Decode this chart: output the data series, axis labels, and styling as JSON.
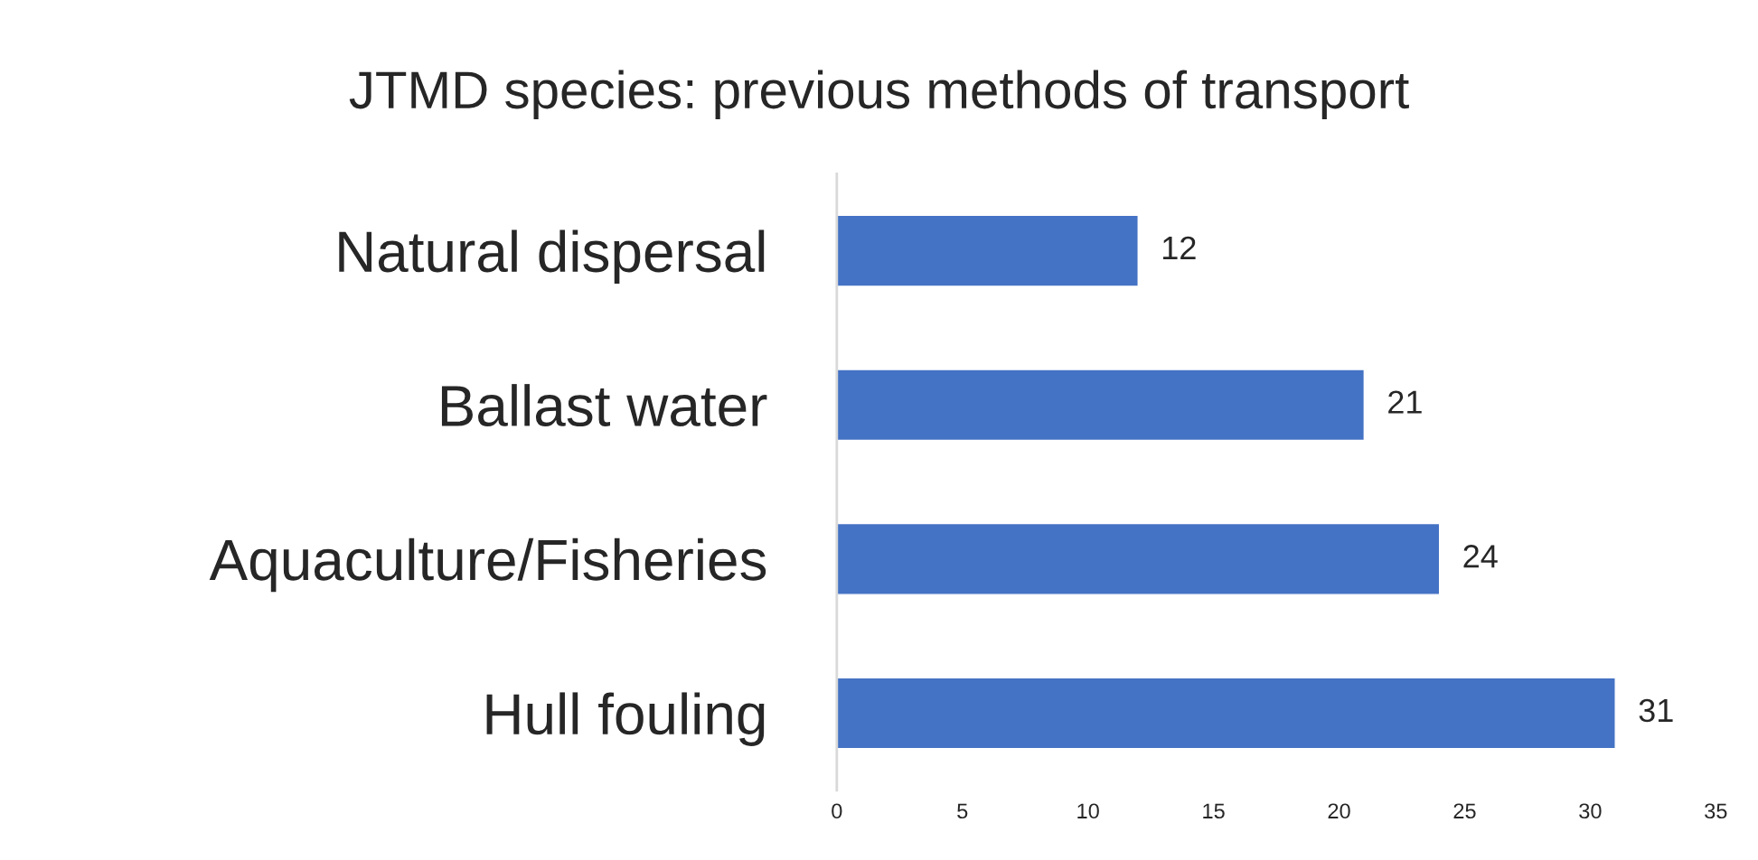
{
  "chart_data": {
    "type": "bar",
    "orientation": "horizontal",
    "title": "JTMD species: previous methods of transport",
    "categories": [
      "Natural dispersal",
      "Ballast water",
      "Aquaculture/Fisheries",
      "Hull fouling"
    ],
    "values": [
      12,
      21,
      24,
      31
    ],
    "color": "#4472c4",
    "xlim": [
      0,
      35
    ],
    "xticks": [
      0,
      5,
      10,
      15,
      20,
      25,
      30,
      35
    ],
    "data_labels": true,
    "grid": false,
    "legend": false
  }
}
